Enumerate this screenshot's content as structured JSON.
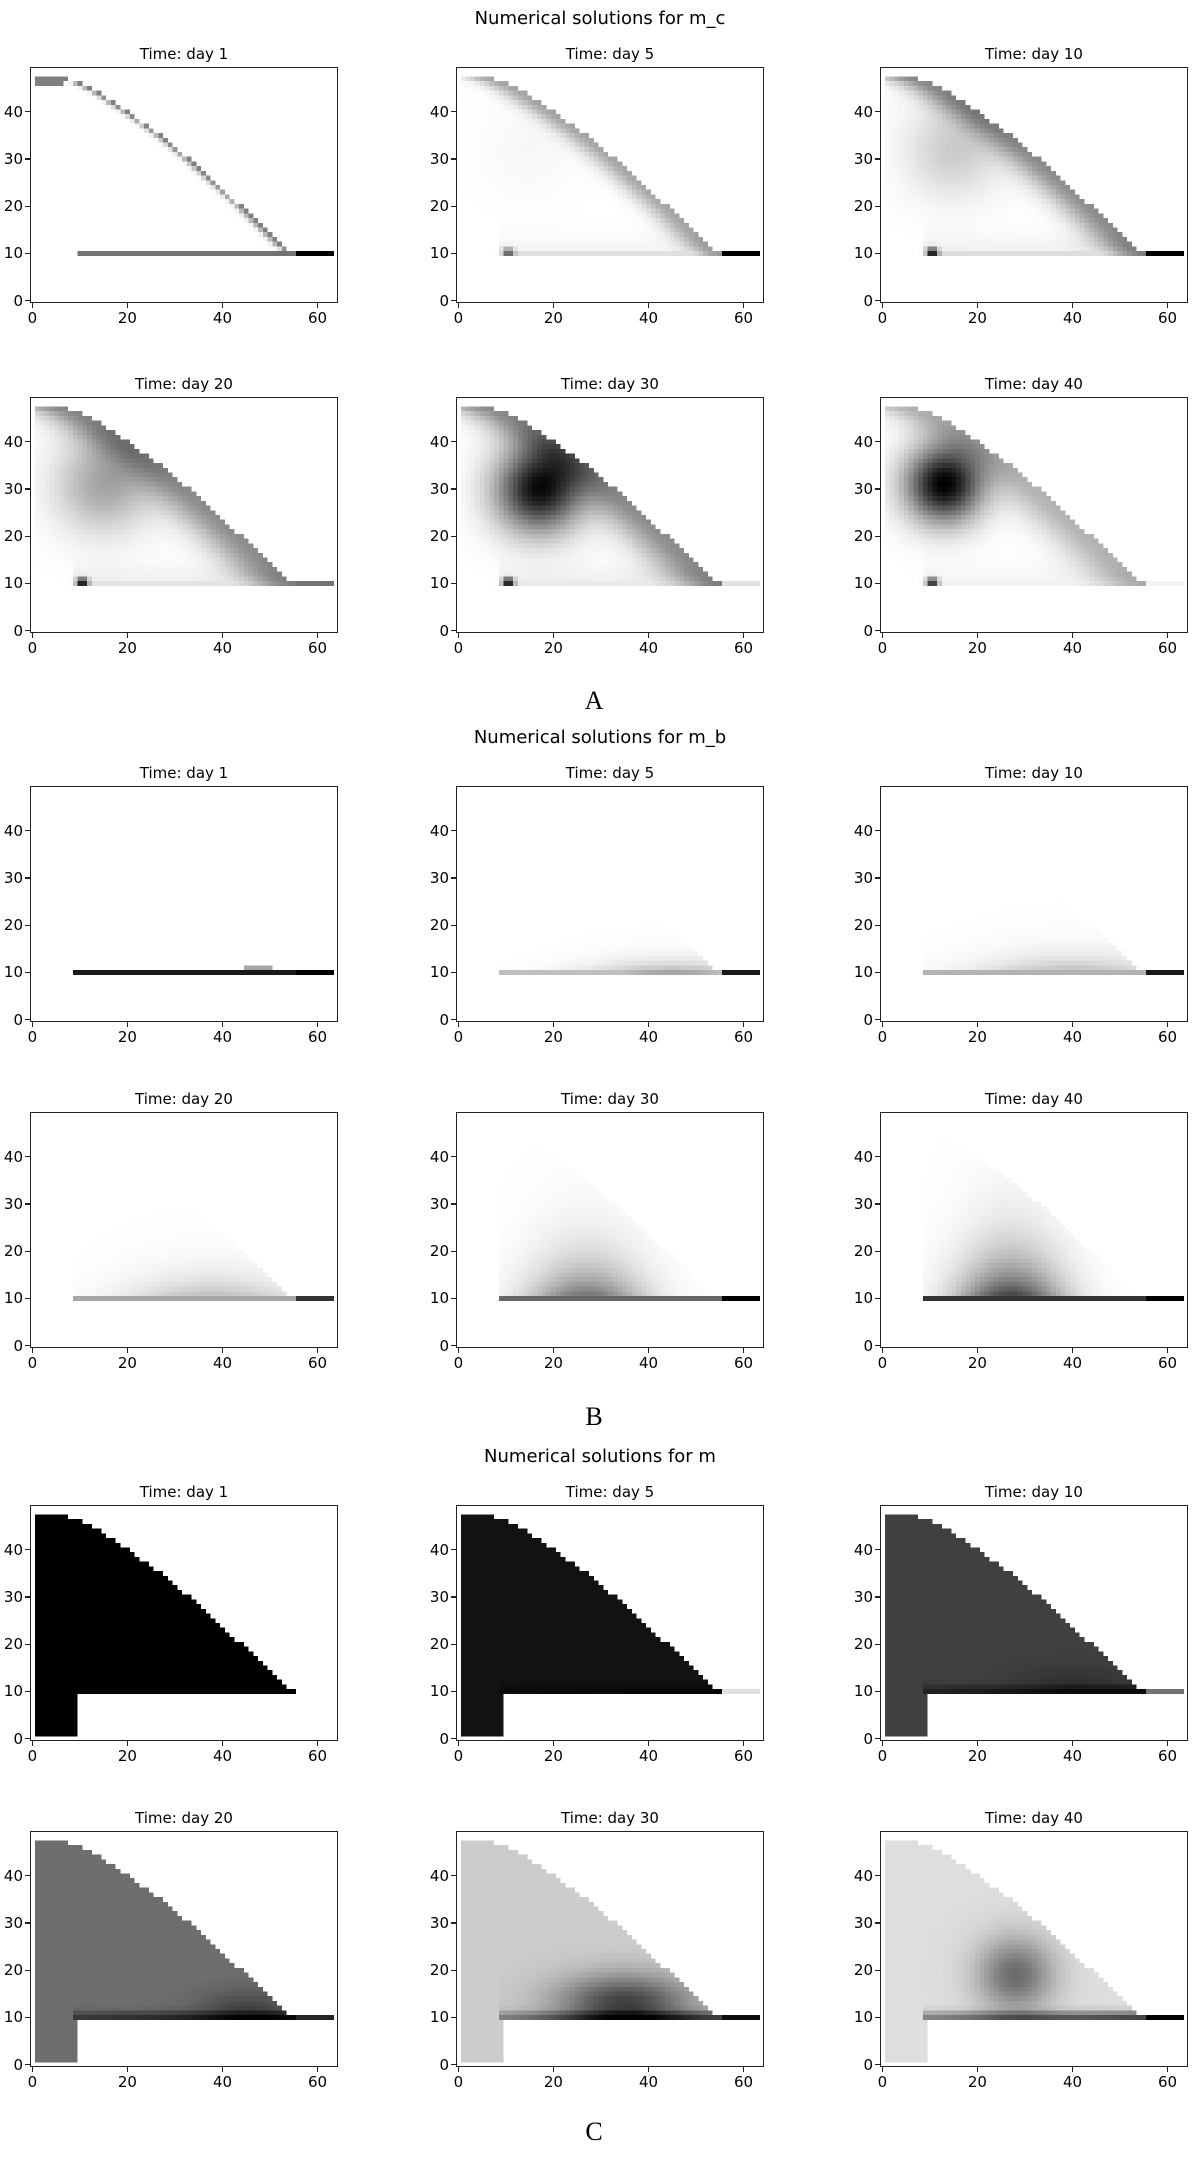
{
  "chart_data": [
    {
      "type": "heatmap",
      "title": "Numerical solutions for m_c",
      "label": "A",
      "variable": "m_c",
      "panels": [
        "Time: day 1",
        "Time: day 5",
        "Time: day 10",
        "Time: day 20",
        "Time: day 30",
        "Time: day 40"
      ],
      "days": [
        1,
        5,
        10,
        20,
        30,
        40
      ],
      "xlim": [
        -0.5,
        64.3
      ],
      "ylim": [
        -0.5,
        49.5
      ],
      "xticks": [
        "0",
        "20",
        "40",
        "60"
      ],
      "yticks": [
        "0",
        "10",
        "20",
        "30",
        "40"
      ],
      "colormap": "grayscale (white = 0, black = max)"
    },
    {
      "type": "heatmap",
      "title": "Numerical solutions for m_b",
      "label": "B",
      "variable": "m_b",
      "panels": [
        "Time: day 1",
        "Time: day 5",
        "Time: day 10",
        "Time: day 20",
        "Time: day 30",
        "Time: day 40"
      ],
      "days": [
        1,
        5,
        10,
        20,
        30,
        40
      ],
      "xlim": [
        -0.5,
        64.3
      ],
      "ylim": [
        -0.5,
        49.5
      ],
      "xticks": [
        "0",
        "20",
        "40",
        "60"
      ],
      "yticks": [
        "0",
        "10",
        "20",
        "30",
        "40"
      ],
      "colormap": "grayscale (white = 0, black = max)"
    },
    {
      "type": "heatmap",
      "title": "Numerical solutions for m",
      "label": "C",
      "variable": "m",
      "panels": [
        "Time: day 1",
        "Time: day 5",
        "Time: day 10",
        "Time: day 20",
        "Time: day 30",
        "Time: day 40"
      ],
      "days": [
        1,
        5,
        10,
        20,
        30,
        40
      ],
      "xlim": [
        -0.5,
        64.3
      ],
      "ylim": [
        -0.5,
        49.5
      ],
      "xticks": [
        "0",
        "20",
        "40",
        "60"
      ],
      "yticks": [
        "0",
        "10",
        "20",
        "30",
        "40"
      ],
      "colormap": "grayscale (white = 0, black = max)"
    }
  ]
}
